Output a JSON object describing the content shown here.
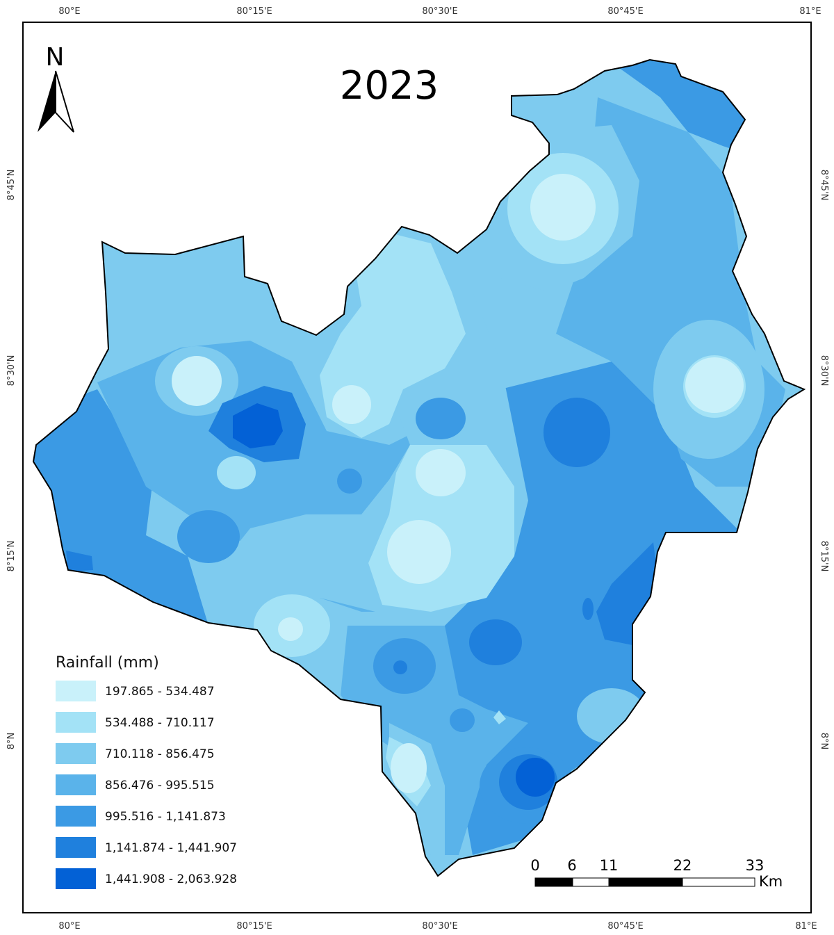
{
  "map": {
    "title": "2023",
    "north_arrow": {
      "letter": "N"
    },
    "graticule": {
      "top_labels": [
        "80°E",
        "80°15'E",
        "80°30'E",
        "80°45'E",
        "81°E"
      ],
      "bottom_labels": [
        "80°E",
        "80°15'E",
        "80°30'E",
        "80°45'E",
        "81°E"
      ],
      "left_labels": [
        "8°45'N",
        "8°30'N",
        "8°15'N",
        "8°N"
      ],
      "right_labels": [
        "8°45'N",
        "8°30'N",
        "8°15'N",
        "8°N"
      ]
    },
    "legend": {
      "title": "Rainfall (mm)",
      "classes": [
        {
          "label": "197.865 - 534.487",
          "color": "#c9f1fa"
        },
        {
          "label": "534.488 - 710.117",
          "color": "#a3e2f6"
        },
        {
          "label": "710.118 - 856.475",
          "color": "#7ecbef"
        },
        {
          "label": "856.476 - 995.515",
          "color": "#5ab3ea"
        },
        {
          "label": "995.516 - 1,141.873",
          "color": "#3b9ae4"
        },
        {
          "label": "1,141.874 - 1,441.907",
          "color": "#1f80dd"
        },
        {
          "label": "1,441.908 - 2,063.928",
          "color": "#0361d6"
        }
      ]
    },
    "scale_bar": {
      "labels": [
        "0",
        "6",
        "11",
        "22",
        "33"
      ],
      "unit": "Km"
    }
  }
}
